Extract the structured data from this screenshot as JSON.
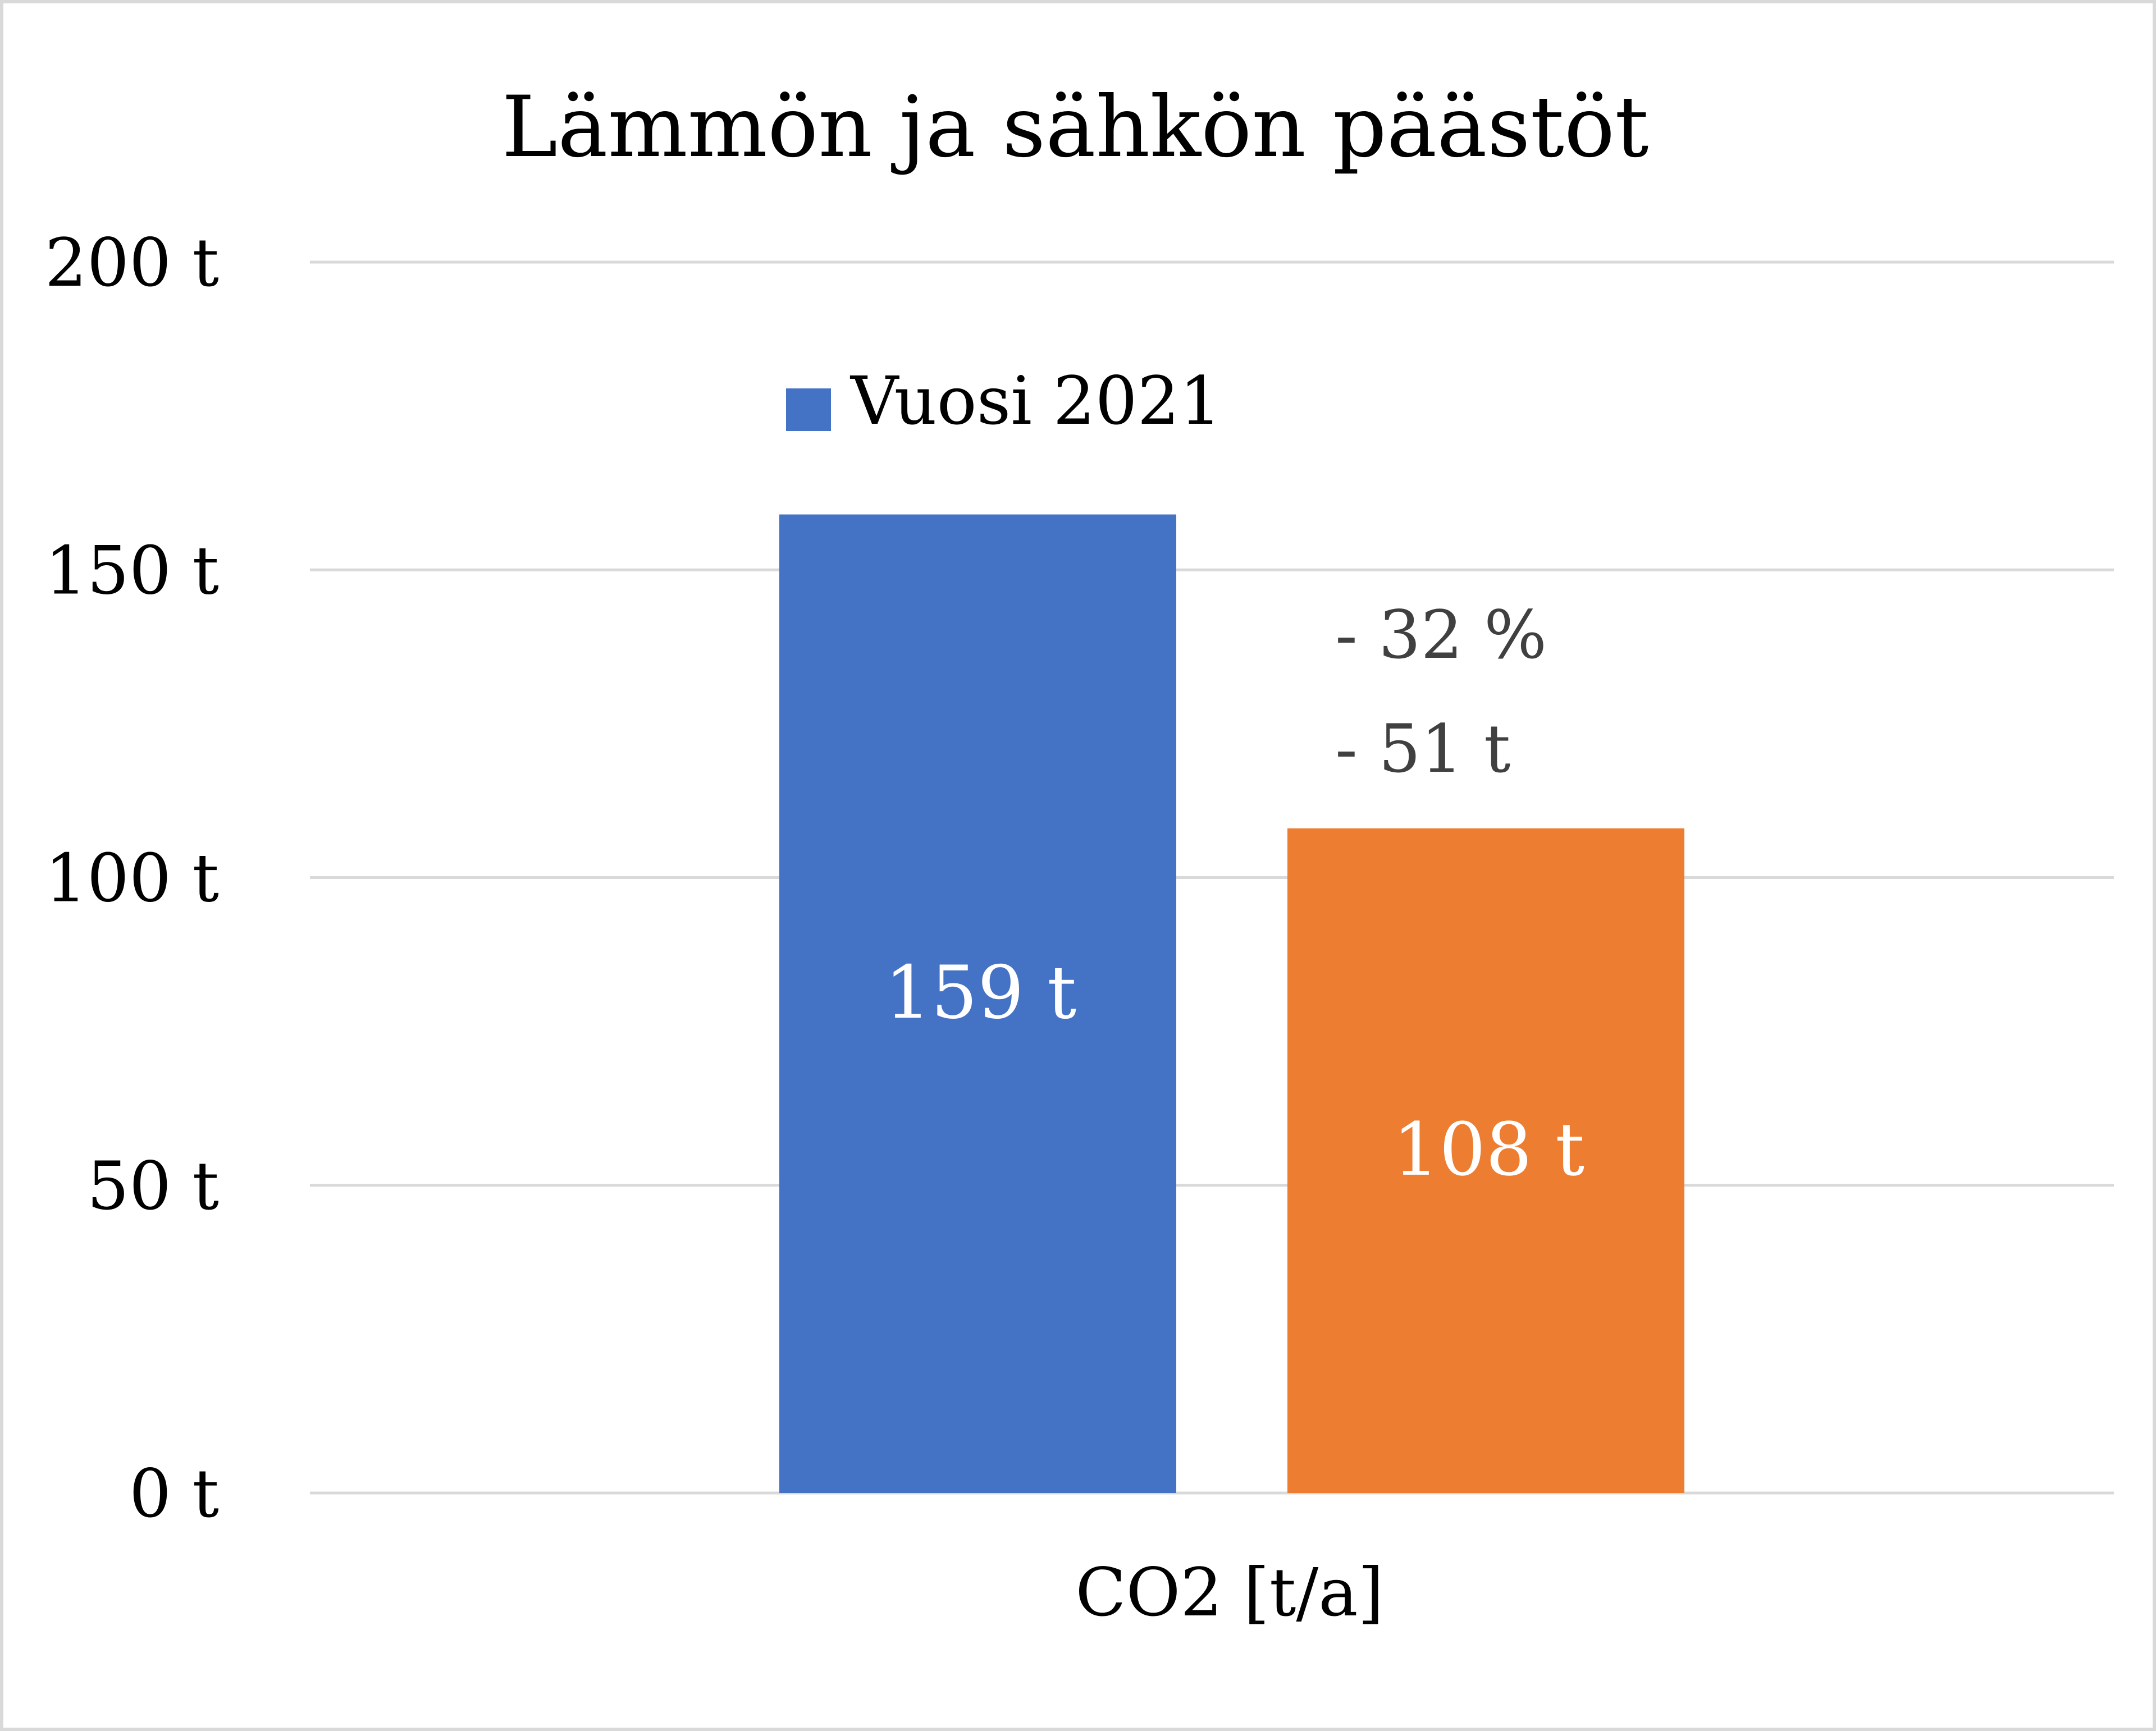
{
  "chart_data": {
    "type": "bar",
    "title": "Lämmön ja sähkön päästöt",
    "xlabel": "",
    "ylabel": "",
    "categories": [
      "CO2 [t/a]"
    ],
    "ylim": [
      0,
      200
    ],
    "yticks": [
      {
        "value": 0,
        "label": "0 t"
      },
      {
        "value": 50,
        "label": "50 t"
      },
      {
        "value": 100,
        "label": "100 t"
      },
      {
        "value": 150,
        "label": "150 t"
      },
      {
        "value": 200,
        "label": "200 t"
      }
    ],
    "grid": true,
    "legend": {
      "position": "top-center",
      "entries": [
        {
          "name": "Vuosi 2021",
          "color": "#4472C4"
        }
      ]
    },
    "series": [
      {
        "name": "Vuosi 2021",
        "color": "#4472C4",
        "values": [
          159
        ],
        "data_labels": [
          "159 t"
        ]
      },
      {
        "color": "#ED7D31",
        "values": [
          108
        ],
        "data_labels": [
          "108 t"
        ]
      }
    ],
    "annotations": [
      {
        "text": "- 32 %",
        "near_series": 1
      },
      {
        "text": "- 51 t",
        "near_series": 1
      }
    ]
  },
  "colors": {
    "frame": "#D9D9D9",
    "grid": "#D9D9D9",
    "text": "#000000",
    "annotation_text": "#404040",
    "data_label_text": "#FFFFFF"
  }
}
